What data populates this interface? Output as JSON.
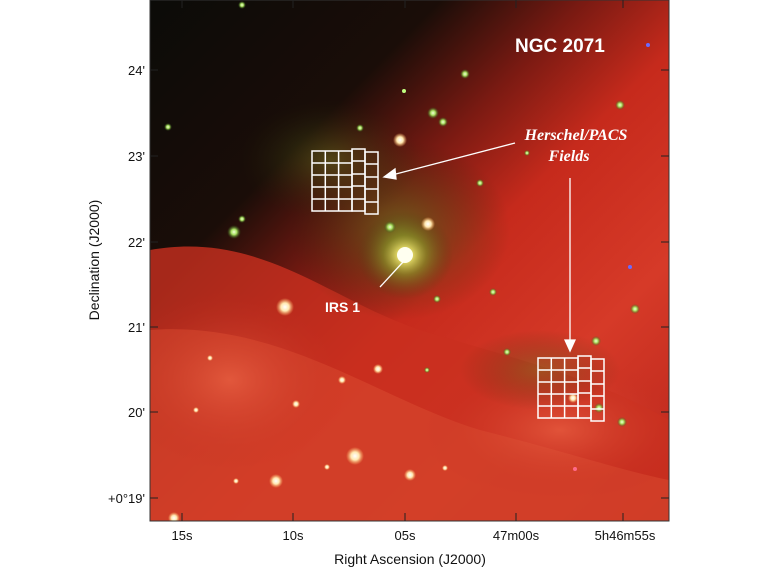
{
  "figure": {
    "title": "NGC 2071",
    "xlabel": "Right Ascension (J2000)",
    "ylabel": "Declination (J2000)",
    "x_ticks": [
      "15s",
      "10s",
      "05s",
      "47m00s",
      "5h46m55s"
    ],
    "y_ticks": [
      "24'",
      "23'",
      "22'",
      "21'",
      "20'",
      "+0°19'"
    ],
    "annotations": {
      "fields_line1": "Herschel/PACS",
      "fields_line2": "Fields",
      "source": "IRS 1"
    },
    "colors": {
      "background_sky": "#0a0a08",
      "nebula_red": "#c0281c",
      "nebula_orange": "#e05a3a",
      "star_green": "#b8e07a",
      "overlay_white": "#ffffff"
    }
  }
}
